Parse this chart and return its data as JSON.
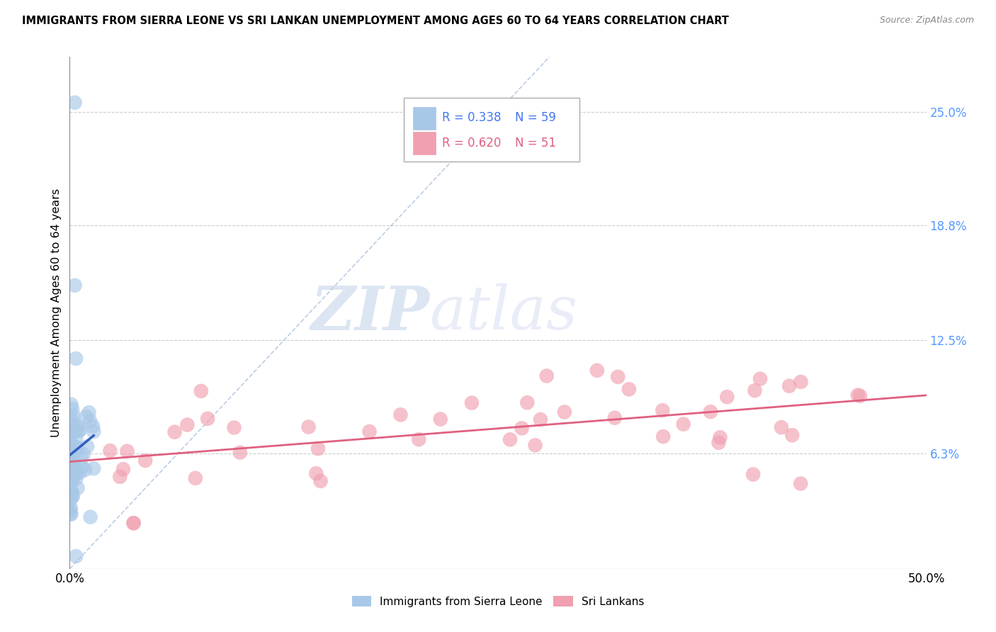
{
  "title": "IMMIGRANTS FROM SIERRA LEONE VS SRI LANKAN UNEMPLOYMENT AMONG AGES 60 TO 64 YEARS CORRELATION CHART",
  "source": "Source: ZipAtlas.com",
  "ylabel": "Unemployment Among Ages 60 to 64 years",
  "xlim": [
    0.0,
    0.5
  ],
  "ylim": [
    0.0,
    0.28
  ],
  "yticks": [
    0.063,
    0.125,
    0.188,
    0.25
  ],
  "ytick_labels": [
    "6.3%",
    "12.5%",
    "18.8%",
    "25.0%"
  ],
  "xtick_positions": [
    0.0,
    0.5
  ],
  "xtick_labels": [
    "0.0%",
    "50.0%"
  ],
  "legend_r1": "R = 0.338",
  "legend_n1": "N = 59",
  "legend_r2": "R = 0.620",
  "legend_n2": "N = 51",
  "color_blue": "#A8C8E8",
  "color_pink": "#F0A0B0",
  "color_blue_line": "#3060C0",
  "color_pink_line": "#E06080",
  "color_ref_dash": "#A0B8D8",
  "watermark_zip": "ZIP",
  "watermark_atlas": "atlas",
  "background": "#FFFFFF"
}
